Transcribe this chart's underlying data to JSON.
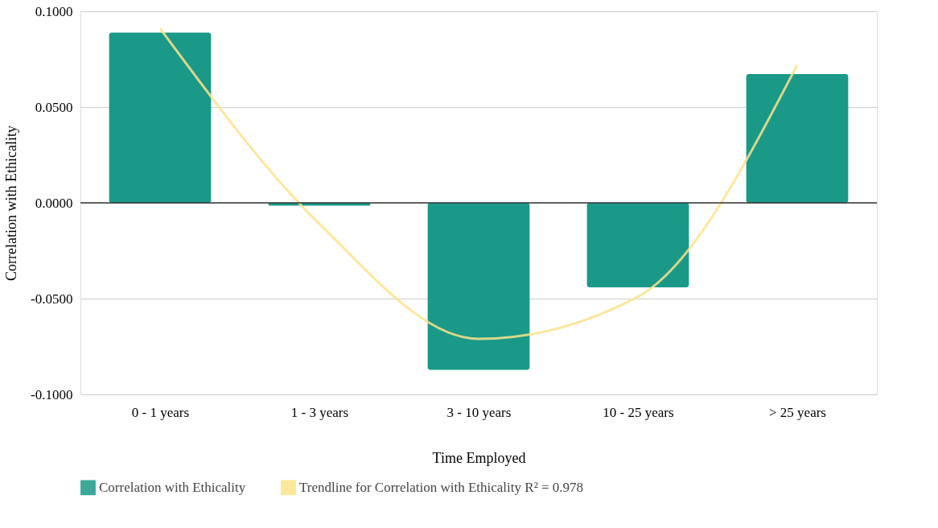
{
  "chart_data": {
    "type": "bar",
    "xlabel": "Time Employed",
    "ylabel": "Correlation with Ethicality",
    "categories": [
      "0 - 1 years",
      "1 - 3 years",
      "3 - 10 years",
      "10 - 25 years",
      "> 25 years"
    ],
    "series": [
      {
        "name": "Correlation with Ethicality",
        "color": "#1a9988",
        "values": [
          0.0889,
          -0.0015,
          -0.0872,
          -0.0441,
          0.0672
        ]
      },
      {
        "name": "Trendline for Correlation with Ethicality R² = 0.978",
        "type": "line",
        "color": "#fde38a",
        "values": [
          0.091,
          -0.011,
          -0.071,
          -0.049,
          0.072
        ]
      }
    ],
    "ylim": [
      -0.1,
      0.1
    ],
    "yticks": [
      {
        "value": -0.1,
        "label": "-0.1000"
      },
      {
        "value": -0.05,
        "label": "-0.0500"
      },
      {
        "value": 0,
        "label": "0.0000"
      },
      {
        "value": 0.05,
        "label": "0.0500"
      },
      {
        "value": 0.1,
        "label": "0.1000"
      }
    ],
    "ref_lines": [
      {
        "axis": "y",
        "value": 0,
        "color": "#333333"
      }
    ],
    "grid": "y",
    "legend": "bottom"
  }
}
